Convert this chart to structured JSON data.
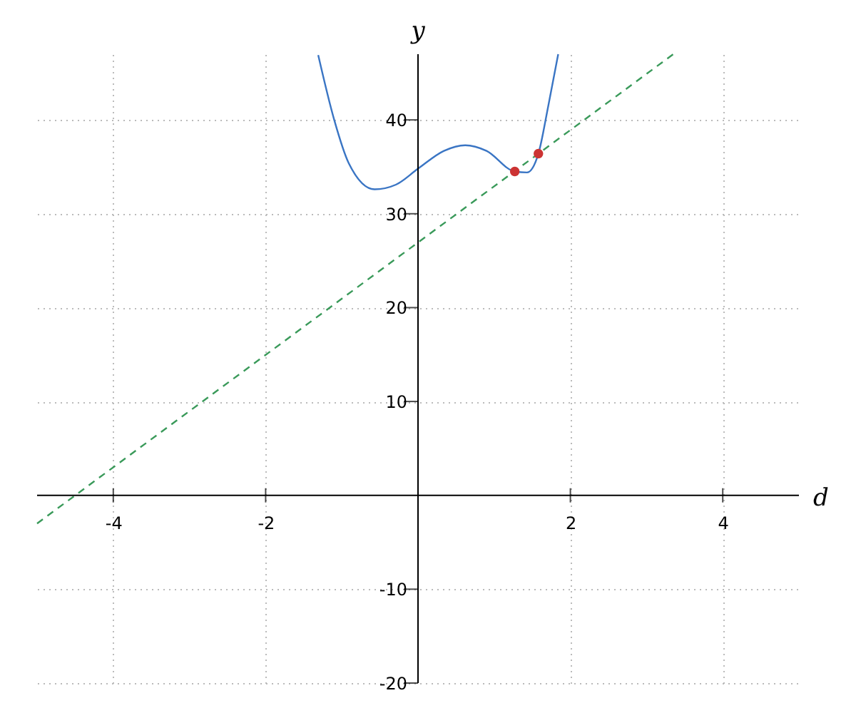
{
  "chart_data": {
    "type": "line",
    "xlabel": "d",
    "ylabel": "y",
    "xlim": [
      -5,
      5
    ],
    "ylim": [
      -20,
      47
    ],
    "xticks": [
      -4,
      -2,
      2,
      4
    ],
    "yticks": [
      -20,
      -10,
      10,
      20,
      30,
      40
    ],
    "grid": true,
    "series": [
      {
        "color": "#3a75c4",
        "line_style": "solid",
        "marker": "none",
        "x": [
          -1.31,
          -1.1,
          -0.91,
          -0.57,
          -0.29,
          0,
          0.34,
          0.62,
          0.9,
          1.27,
          1.43,
          1.58,
          1.71,
          1.84
        ],
        "values": [
          46.9,
          40.0,
          35.4,
          32.6,
          33.1,
          34.8,
          36.7,
          37.3,
          36.7,
          34.5,
          34.4,
          36.4,
          41.5,
          47.0
        ]
      },
      {
        "color": "#3a9a5a",
        "line_style": "dashed",
        "marker": "none",
        "x": [
          -5,
          3.35
        ],
        "values": [
          -3,
          47
        ]
      },
      {
        "type": "scatter",
        "color": "#cc3333",
        "marker": "circle",
        "x": [
          1.27,
          1.58
        ],
        "values": [
          34.5,
          36.4
        ]
      }
    ]
  }
}
